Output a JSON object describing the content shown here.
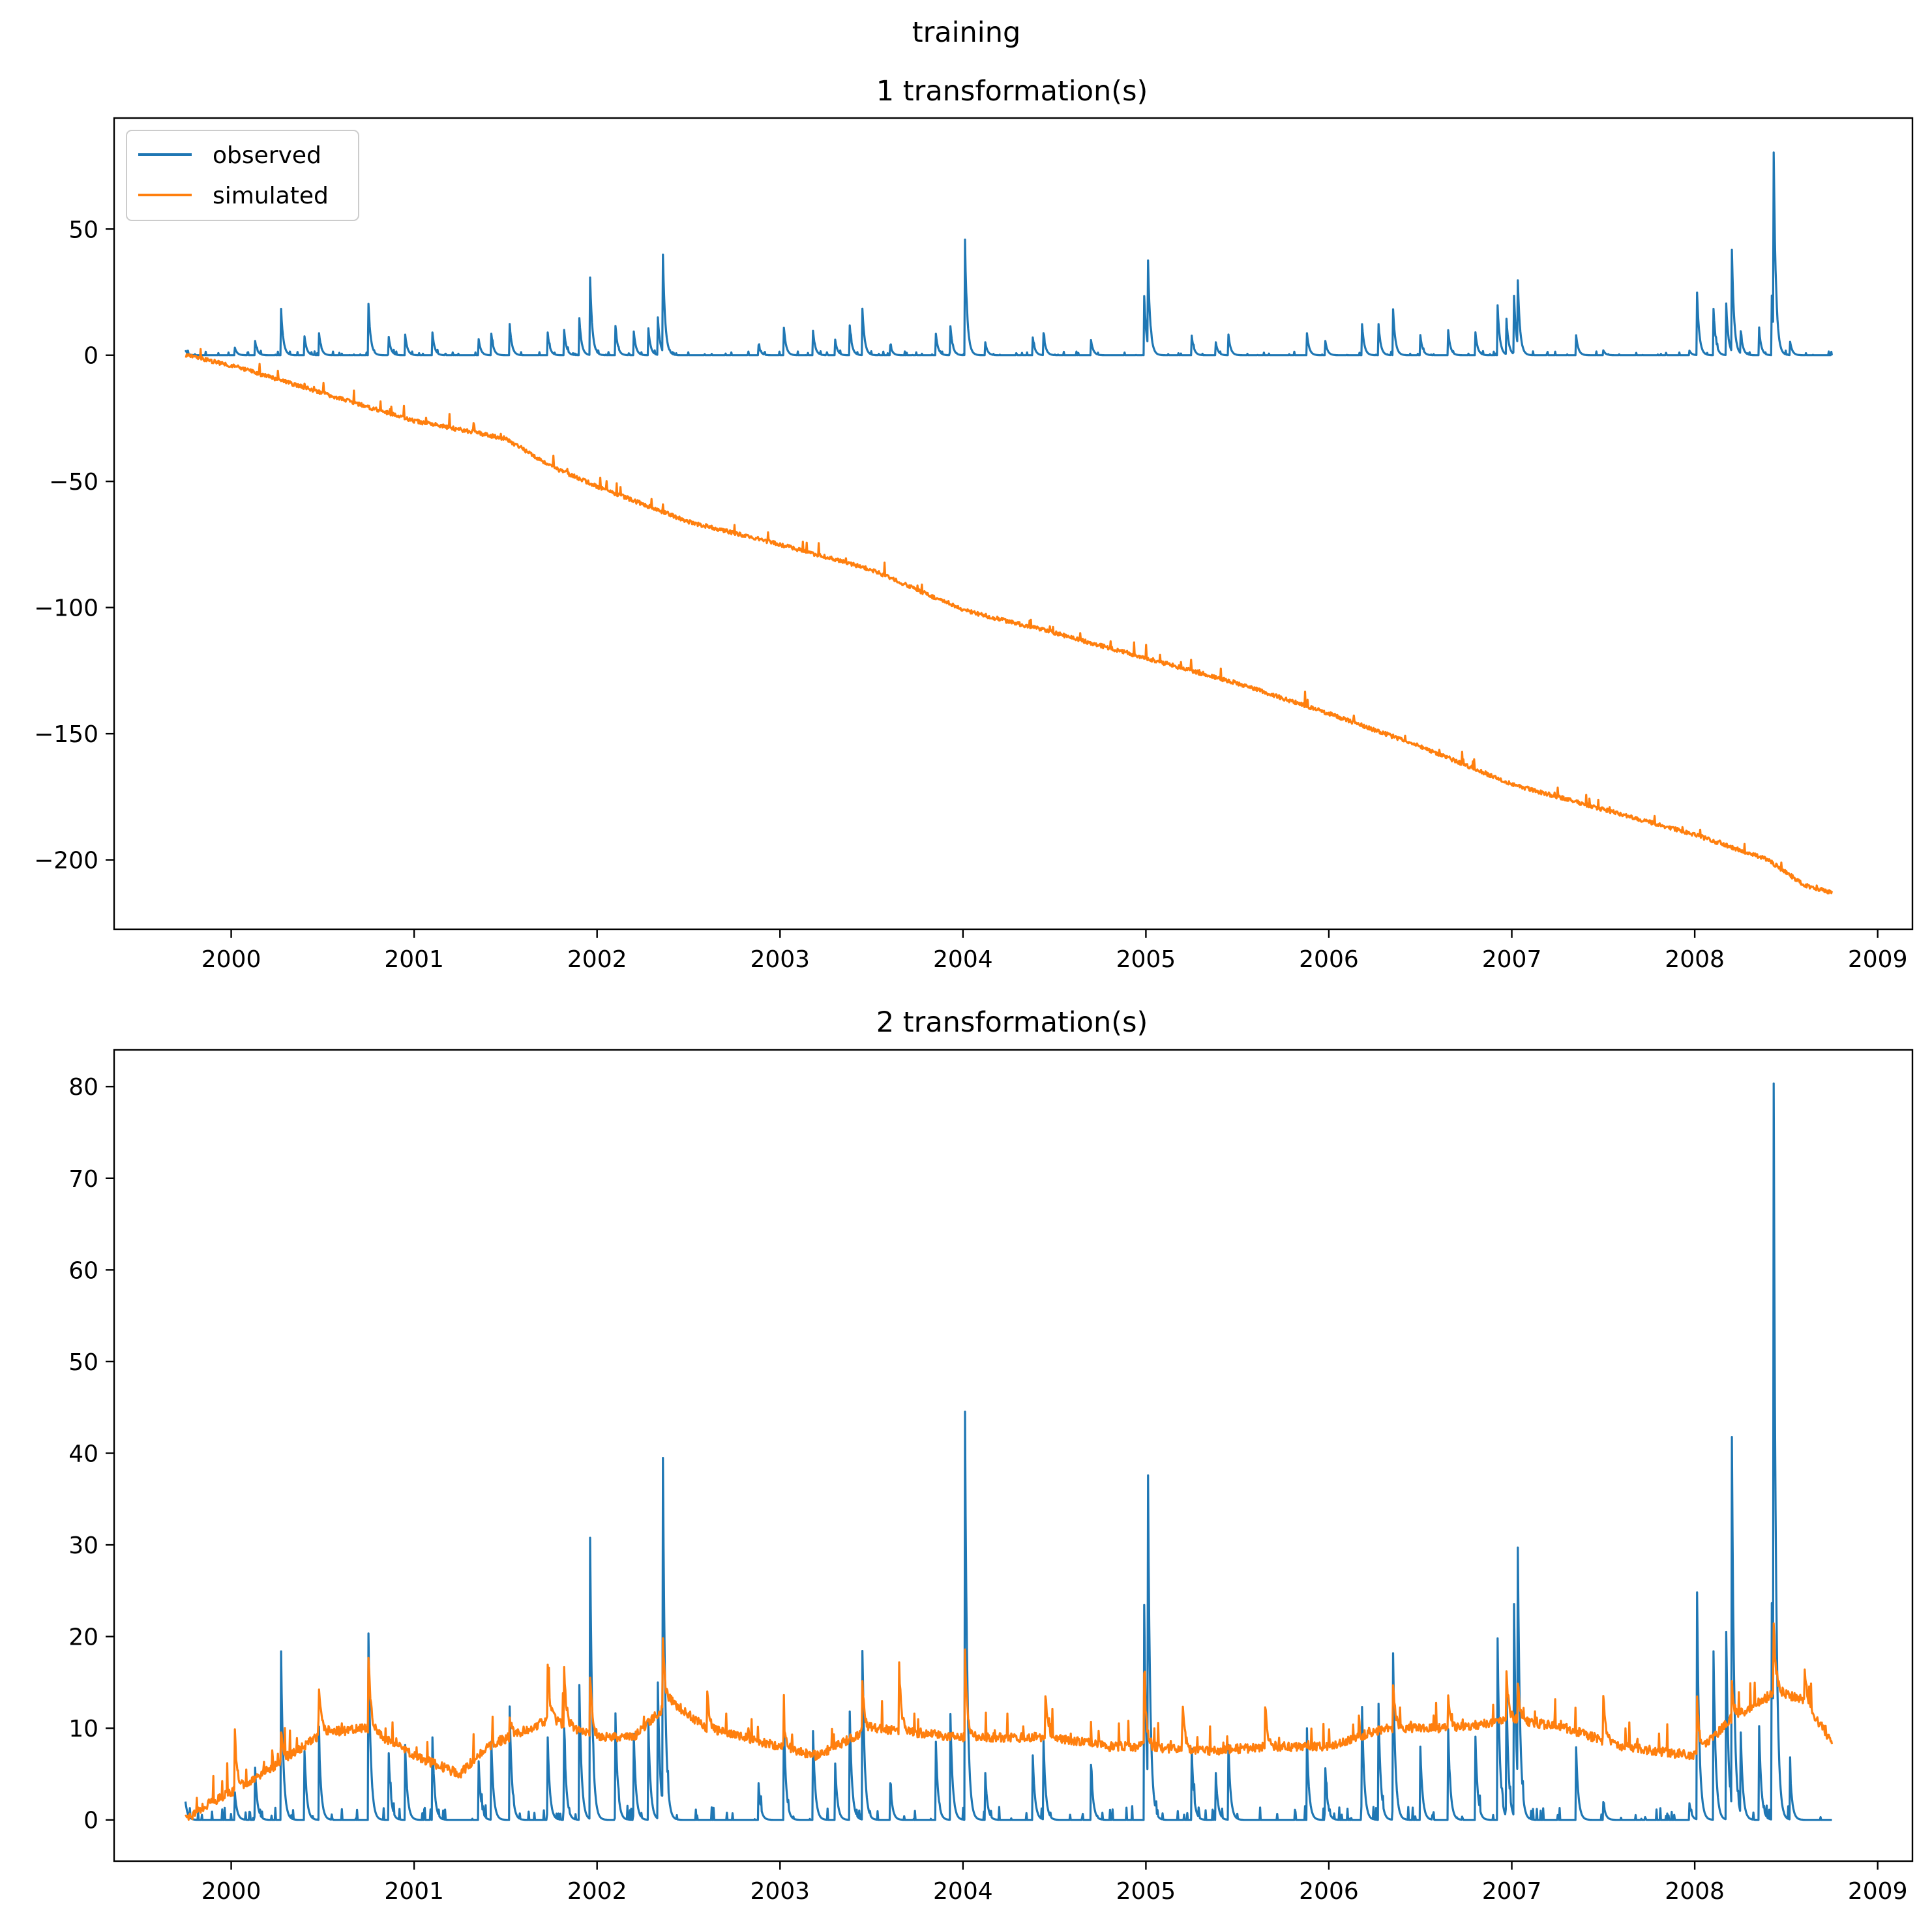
{
  "figure": {
    "suptitle": "training"
  },
  "chart_data": [
    {
      "type": "line",
      "title": "1 transformation(s)",
      "xlabel": "",
      "ylabel": "",
      "xlim": [
        1999.36,
        2009.19
      ],
      "ylim": [
        -227.5,
        94
      ],
      "x_ticks": [
        "2000",
        "2001",
        "2002",
        "2003",
        "2004",
        "2005",
        "2006",
        "2007",
        "2008",
        "2009"
      ],
      "y_ticks": [
        -200,
        -150,
        -100,
        -50,
        0,
        50
      ],
      "y_tick_labels": [
        "−200",
        "−150",
        "−100",
        "−50",
        "0",
        "50"
      ],
      "grid": false,
      "legend": {
        "position": "top-left",
        "entries": [
          "observed",
          "simulated"
        ]
      },
      "series": [
        {
          "name": "observed",
          "color": "#1f77b4",
          "baseline": 0,
          "peaks": [
            [
              1999.75,
              2
            ],
            [
              2000.02,
              3
            ],
            [
              2000.13,
              6
            ],
            [
              2000.27,
              23
            ],
            [
              2000.4,
              8
            ],
            [
              2000.48,
              9
            ],
            [
              2000.75,
              21
            ],
            [
              2000.86,
              8
            ],
            [
              2000.95,
              9
            ],
            [
              2001.1,
              9
            ],
            [
              2001.35,
              8
            ],
            [
              2001.42,
              10
            ],
            [
              2001.52,
              15
            ],
            [
              2001.73,
              9
            ],
            [
              2001.82,
              10
            ],
            [
              2001.9,
              19
            ],
            [
              2001.96,
              36
            ],
            [
              2002.1,
              12
            ],
            [
              2002.2,
              10
            ],
            [
              2002.28,
              11
            ],
            [
              2002.33,
              18
            ],
            [
              2002.36,
              38
            ],
            [
              2002.88,
              5
            ],
            [
              2003.02,
              12
            ],
            [
              2003.18,
              10
            ],
            [
              2003.3,
              7
            ],
            [
              2003.38,
              13
            ],
            [
              2003.45,
              19
            ],
            [
              2003.6,
              5
            ],
            [
              2003.85,
              10
            ],
            [
              2003.93,
              13
            ],
            [
              2004.01,
              49
            ],
            [
              2004.12,
              6
            ],
            [
              2004.38,
              8
            ],
            [
              2004.44,
              9
            ],
            [
              2004.7,
              6
            ],
            [
              2004.99,
              25
            ],
            [
              2005.01,
              38
            ],
            [
              2005.25,
              8
            ],
            [
              2005.38,
              6
            ],
            [
              2005.45,
              9
            ],
            [
              2005.88,
              9
            ],
            [
              2005.98,
              6
            ],
            [
              2006.18,
              14
            ],
            [
              2006.27,
              14
            ],
            [
              2006.35,
              20
            ],
            [
              2006.5,
              8
            ],
            [
              2006.65,
              12
            ],
            [
              2006.8,
              10
            ],
            [
              2006.92,
              24
            ],
            [
              2006.97,
              15
            ],
            [
              2007.01,
              28
            ],
            [
              2007.03,
              33
            ],
            [
              2007.35,
              9
            ],
            [
              2007.5,
              2
            ],
            [
              2007.97,
              2
            ],
            [
              2008.01,
              31
            ],
            [
              2008.1,
              23
            ],
            [
              2008.17,
              24
            ],
            [
              2008.2,
              52
            ],
            [
              2008.25,
              10
            ],
            [
              2008.35,
              12
            ],
            [
              2008.42,
              26
            ],
            [
              2008.43,
              80
            ],
            [
              2008.52,
              6
            ]
          ]
        },
        {
          "name": "simulated",
          "color": "#ff7f0e",
          "trend": [
            [
              1999.75,
              0
            ],
            [
              2000.0,
              -4
            ],
            [
              2000.5,
              -15
            ],
            [
              2001.0,
              -26
            ],
            [
              2001.5,
              -33
            ],
            [
              2001.75,
              -44
            ],
            [
              2002.0,
              -52
            ],
            [
              2002.5,
              -66
            ],
            [
              2003.0,
              -75
            ],
            [
              2003.5,
              -85
            ],
            [
              2004.0,
              -101
            ],
            [
              2004.5,
              -110
            ],
            [
              2005.0,
              -120
            ],
            [
              2005.5,
              -130
            ],
            [
              2006.0,
              -142
            ],
            [
              2006.5,
              -155
            ],
            [
              2007.0,
              -170
            ],
            [
              2007.5,
              -180
            ],
            [
              2008.0,
              -190
            ],
            [
              2008.4,
              -200
            ],
            [
              2008.6,
              -210
            ],
            [
              2008.75,
              -213
            ]
          ]
        }
      ]
    },
    {
      "type": "line",
      "title": "2 transformation(s)",
      "xlabel": "",
      "ylabel": "",
      "xlim": [
        1999.36,
        2009.19
      ],
      "ylim": [
        -4.5,
        84
      ],
      "x_ticks": [
        "2000",
        "2001",
        "2002",
        "2003",
        "2004",
        "2005",
        "2006",
        "2007",
        "2008",
        "2009"
      ],
      "y_ticks": [
        0,
        10,
        20,
        30,
        40,
        50,
        60,
        70,
        80
      ],
      "y_tick_labels": [
        "0",
        "10",
        "20",
        "30",
        "40",
        "50",
        "60",
        "70",
        "80"
      ],
      "grid": false,
      "series": [
        {
          "name": "observed",
          "color": "#1f77b4",
          "baseline": 0,
          "peaks": [
            [
              1999.75,
              2
            ],
            [
              2000.02,
              3
            ],
            [
              2000.13,
              6
            ],
            [
              2000.27,
              23
            ],
            [
              2000.4,
              8
            ],
            [
              2000.48,
              9
            ],
            [
              2000.75,
              21
            ],
            [
              2000.86,
              8
            ],
            [
              2000.95,
              9
            ],
            [
              2001.1,
              9
            ],
            [
              2001.35,
              8
            ],
            [
              2001.42,
              10
            ],
            [
              2001.52,
              15
            ],
            [
              2001.73,
              9
            ],
            [
              2001.82,
              10
            ],
            [
              2001.9,
              19
            ],
            [
              2001.96,
              36
            ],
            [
              2002.1,
              12
            ],
            [
              2002.2,
              10
            ],
            [
              2002.28,
              11
            ],
            [
              2002.33,
              18
            ],
            [
              2002.36,
              38
            ],
            [
              2002.88,
              5
            ],
            [
              2003.02,
              12
            ],
            [
              2003.18,
              10
            ],
            [
              2003.3,
              7
            ],
            [
              2003.38,
              13
            ],
            [
              2003.45,
              19
            ],
            [
              2003.6,
              5
            ],
            [
              2003.85,
              10
            ],
            [
              2003.93,
              13
            ],
            [
              2004.01,
              49
            ],
            [
              2004.12,
              6
            ],
            [
              2004.38,
              8
            ],
            [
              2004.44,
              9
            ],
            [
              2004.7,
              6
            ],
            [
              2004.99,
              25
            ],
            [
              2005.01,
              38
            ],
            [
              2005.25,
              8
            ],
            [
              2005.38,
              6
            ],
            [
              2005.45,
              9
            ],
            [
              2005.88,
              9
            ],
            [
              2005.98,
              6
            ],
            [
              2006.18,
              14
            ],
            [
              2006.27,
              14
            ],
            [
              2006.35,
              20
            ],
            [
              2006.5,
              8
            ],
            [
              2006.65,
              12
            ],
            [
              2006.8,
              10
            ],
            [
              2006.92,
              24
            ],
            [
              2006.97,
              15
            ],
            [
              2007.01,
              28
            ],
            [
              2007.03,
              33
            ],
            [
              2007.35,
              9
            ],
            [
              2007.5,
              2
            ],
            [
              2007.97,
              2
            ],
            [
              2008.01,
              31
            ],
            [
              2008.1,
              23
            ],
            [
              2008.17,
              24
            ],
            [
              2008.2,
              52
            ],
            [
              2008.25,
              10
            ],
            [
              2008.35,
              12
            ],
            [
              2008.42,
              26
            ],
            [
              2008.43,
              80
            ],
            [
              2008.52,
              6
            ]
          ]
        },
        {
          "name": "simulated",
          "color": "#ff7f0e",
          "baseline_path": [
            [
              1999.75,
              0
            ],
            [
              1999.85,
              1.5
            ],
            [
              2000.0,
              3
            ],
            [
              2000.25,
              6
            ],
            [
              2000.5,
              9.5
            ],
            [
              2000.75,
              10
            ],
            [
              2001.0,
              7
            ],
            [
              2001.25,
              5
            ],
            [
              2001.4,
              8
            ],
            [
              2001.75,
              11
            ],
            [
              2002.0,
              9
            ],
            [
              2002.2,
              9
            ],
            [
              2002.4,
              13
            ],
            [
              2002.6,
              10
            ],
            [
              2003.0,
              8
            ],
            [
              2003.2,
              7
            ],
            [
              2003.5,
              10
            ],
            [
              2004.0,
              9
            ],
            [
              2004.5,
              9
            ],
            [
              2004.8,
              8
            ],
            [
              2005.0,
              8
            ],
            [
              2005.3,
              7.5
            ],
            [
              2005.7,
              8
            ],
            [
              2006.0,
              8
            ],
            [
              2006.3,
              10
            ],
            [
              2006.7,
              10
            ],
            [
              2007.0,
              11
            ],
            [
              2007.3,
              10
            ],
            [
              2007.6,
              8
            ],
            [
              2008.0,
              7
            ],
            [
              2008.2,
              11
            ],
            [
              2008.45,
              14
            ],
            [
              2008.6,
              13
            ],
            [
              2008.75,
              8.5
            ]
          ],
          "peaks": [
            [
              2000.02,
              11.5
            ],
            [
              2000.27,
              12
            ],
            [
              2000.48,
              16
            ],
            [
              2000.75,
              20.5
            ],
            [
              2001.52,
              13
            ],
            [
              2001.73,
              18
            ],
            [
              2001.82,
              18
            ],
            [
              2001.96,
              19
            ],
            [
              2002.36,
              21.5
            ],
            [
              2002.6,
              16
            ],
            [
              2003.02,
              12
            ],
            [
              2003.45,
              17
            ],
            [
              2003.65,
              20
            ],
            [
              2004.01,
              21.5
            ],
            [
              2004.45,
              15.5
            ],
            [
              2004.99,
              18
            ],
            [
              2005.2,
              15
            ],
            [
              2005.65,
              15
            ],
            [
              2006.35,
              17
            ],
            [
              2006.65,
              16
            ],
            [
              2006.97,
              18
            ],
            [
              2007.03,
              18
            ],
            [
              2007.5,
              15.5
            ],
            [
              2008.01,
              17
            ],
            [
              2008.2,
              17
            ],
            [
              2008.43,
              25
            ],
            [
              2008.6,
              18
            ]
          ]
        }
      ]
    }
  ]
}
